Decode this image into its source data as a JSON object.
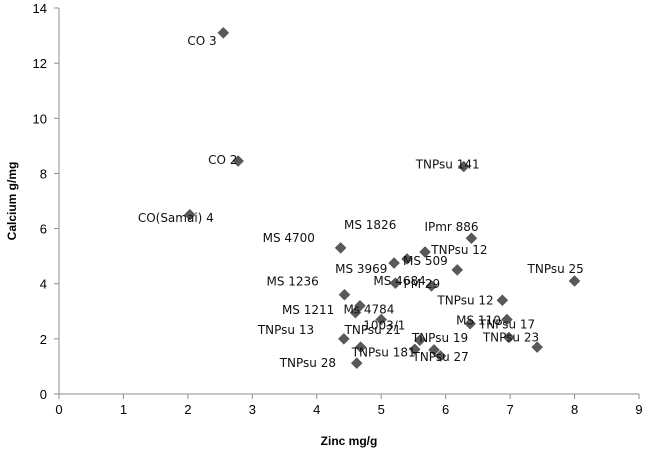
{
  "chart_data": {
    "type": "scatter",
    "title": "",
    "xlabel": "Zinc mg/g",
    "ylabel": "Calcium g/mg",
    "xlim": [
      0,
      9
    ],
    "ylim": [
      0,
      14
    ],
    "xticks": [
      0,
      1,
      2,
      3,
      4,
      5,
      6,
      7,
      8,
      9
    ],
    "yticks": [
      0,
      2,
      4,
      6,
      8,
      10,
      12,
      14
    ],
    "grid": false,
    "legend": "none",
    "marker_color": "#595959",
    "marker": "diamond",
    "points": [
      {
        "label": "CO 3",
        "x": 2.55,
        "y": 13.1
      },
      {
        "label": "CO 2",
        "x": 2.78,
        "y": 8.45
      },
      {
        "label": "CO(Samai) 4",
        "x": 2.03,
        "y": 6.5
      },
      {
        "label": "TNPsu 141",
        "x": 6.28,
        "y": 8.25
      },
      {
        "label": "IPmr 886",
        "x": 6.4,
        "y": 5.65
      },
      {
        "label": "MS 1826",
        "x": 5.4,
        "y": 4.9
      },
      {
        "label": "MS 4700",
        "x": 4.37,
        "y": 5.3
      },
      {
        "label": "MS 3969",
        "x": 5.2,
        "y": 4.75
      },
      {
        "label": "MS 509",
        "x": 5.68,
        "y": 5.15
      },
      {
        "label": "TNPsu 12",
        "x": 6.18,
        "y": 4.5
      },
      {
        "label": "TNPsu 25",
        "x": 8.0,
        "y": 4.1
      },
      {
        "label": "MS 4684",
        "x": 5.22,
        "y": 4.02
      },
      {
        "label": "PM 29",
        "x": 5.78,
        "y": 3.92
      },
      {
        "label": "MS 1236",
        "x": 4.43,
        "y": 3.6
      },
      {
        "label": "TNPsu 12",
        "x": 6.88,
        "y": 3.4
      },
      {
        "label": "MS 1211",
        "x": 4.67,
        "y": 3.2
      },
      {
        "label": "Ms 4784",
        "x": 4.6,
        "y": 2.95
      },
      {
        "label": "1003/1",
        "x": 5.0,
        "y": 2.7
      },
      {
        "label": "MS 110",
        "x": 6.38,
        "y": 2.55
      },
      {
        "label": "TNPsu 17",
        "x": 6.95,
        "y": 2.7
      },
      {
        "label": "TNPsu 13",
        "x": 4.42,
        "y": 2.0
      },
      {
        "label": "TNPsu 21",
        "x": 4.68,
        "y": 1.7
      },
      {
        "label": "TNPsu 19",
        "x": 5.6,
        "y": 1.95
      },
      {
        "label": "TNPsu 23",
        "x": 6.98,
        "y": 2.05
      },
      {
        "label": "TNPsu 28",
        "x": 4.62,
        "y": 1.12
      },
      {
        "label": "TNPsu 181",
        "x": 5.52,
        "y": 1.62
      },
      {
        "label": "TNPsu 27",
        "x": 5.92,
        "y": 1.38
      },
      {
        "label": "",
        "x": 5.82,
        "y": 1.6
      },
      {
        "label": "",
        "x": 7.42,
        "y": 1.7
      }
    ]
  }
}
